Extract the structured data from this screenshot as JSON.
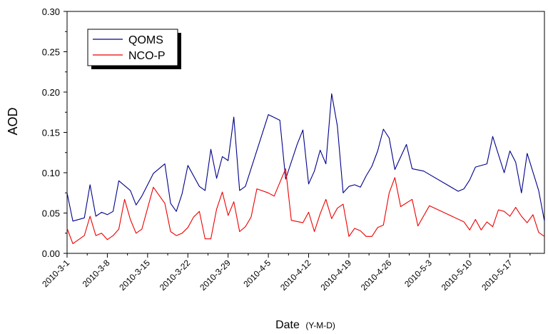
{
  "chart_data": {
    "type": "line",
    "title": "",
    "xlabel": "Date",
    "xlabel_suffix": "(Y-M-D)",
    "ylabel": "AOD",
    "xlim": [
      "2010-03-01",
      "2010-05-23"
    ],
    "ylim": [
      0,
      0.3
    ],
    "grid": false,
    "legend_position": "top-left",
    "x_ticks": [
      "2010-3-1",
      "2010-3-8",
      "2010-3-15",
      "2010-3-22",
      "2010-3-29",
      "2010-4-5",
      "2010-4-12",
      "2010-4-19",
      "2010-4-26",
      "2010-5-3",
      "2010-5-10",
      "2010-5-17"
    ],
    "y_ticks": [
      "0.00",
      "0.05",
      "0.10",
      "0.15",
      "0.20",
      "0.25",
      "0.30"
    ],
    "series": [
      {
        "name": "QOMS",
        "color": "#00008b",
        "points": [
          [
            "2010-03-01",
            0.075
          ],
          [
            "2010-03-02",
            0.04
          ],
          [
            "2010-03-04",
            0.044
          ],
          [
            "2010-03-05",
            0.085
          ],
          [
            "2010-03-06",
            0.046
          ],
          [
            "2010-03-07",
            0.051
          ],
          [
            "2010-03-08",
            0.048
          ],
          [
            "2010-03-09",
            0.052
          ],
          [
            "2010-03-10",
            0.09
          ],
          [
            "2010-03-12",
            0.078
          ],
          [
            "2010-03-13",
            0.06
          ],
          [
            "2010-03-14",
            0.071
          ],
          [
            "2010-03-16",
            0.099
          ],
          [
            "2010-03-18",
            0.111
          ],
          [
            "2010-03-19",
            0.062
          ],
          [
            "2010-03-20",
            0.052
          ],
          [
            "2010-03-21",
            0.074
          ],
          [
            "2010-03-22",
            0.109
          ],
          [
            "2010-03-24",
            0.083
          ],
          [
            "2010-03-25",
            0.078
          ],
          [
            "2010-03-26",
            0.129
          ],
          [
            "2010-03-27",
            0.093
          ],
          [
            "2010-03-28",
            0.12
          ],
          [
            "2010-03-29",
            0.115
          ],
          [
            "2010-03-30",
            0.169
          ],
          [
            "2010-03-31",
            0.078
          ],
          [
            "2010-04-01",
            0.083
          ],
          [
            "2010-04-05",
            0.172
          ],
          [
            "2010-04-07",
            0.165
          ],
          [
            "2010-04-08",
            0.092
          ],
          [
            "2010-04-10",
            0.135
          ],
          [
            "2010-04-11",
            0.153
          ],
          [
            "2010-04-12",
            0.086
          ],
          [
            "2010-04-13",
            0.102
          ],
          [
            "2010-04-14",
            0.128
          ],
          [
            "2010-04-15",
            0.111
          ],
          [
            "2010-04-16",
            0.198
          ],
          [
            "2010-04-17",
            0.158
          ],
          [
            "2010-04-18",
            0.075
          ],
          [
            "2010-04-19",
            0.083
          ],
          [
            "2010-04-20",
            0.085
          ],
          [
            "2010-04-21",
            0.082
          ],
          [
            "2010-04-22",
            0.096
          ],
          [
            "2010-04-23",
            0.108
          ],
          [
            "2010-04-24",
            0.127
          ],
          [
            "2010-04-25",
            0.154
          ],
          [
            "2010-04-26",
            0.143
          ],
          [
            "2010-04-27",
            0.104
          ],
          [
            "2010-04-29",
            0.135
          ],
          [
            "2010-04-30",
            0.105
          ],
          [
            "2010-05-02",
            0.102
          ],
          [
            "2010-05-08",
            0.077
          ],
          [
            "2010-05-09",
            0.08
          ],
          [
            "2010-05-10",
            0.091
          ],
          [
            "2010-05-11",
            0.107
          ],
          [
            "2010-05-13",
            0.111
          ],
          [
            "2010-05-14",
            0.145
          ],
          [
            "2010-05-16",
            0.1
          ],
          [
            "2010-05-17",
            0.127
          ],
          [
            "2010-05-18",
            0.113
          ],
          [
            "2010-05-19",
            0.075
          ],
          [
            "2010-05-20",
            0.124
          ],
          [
            "2010-05-22",
            0.078
          ],
          [
            "2010-05-23",
            0.04
          ]
        ]
      },
      {
        "name": "NCO-P",
        "color": "#ee0000",
        "points": [
          [
            "2010-03-01",
            0.031
          ],
          [
            "2010-03-02",
            0.012
          ],
          [
            "2010-03-04",
            0.022
          ],
          [
            "2010-03-05",
            0.046
          ],
          [
            "2010-03-06",
            0.022
          ],
          [
            "2010-03-07",
            0.025
          ],
          [
            "2010-03-08",
            0.017
          ],
          [
            "2010-03-09",
            0.022
          ],
          [
            "2010-03-10",
            0.03
          ],
          [
            "2010-03-11",
            0.067
          ],
          [
            "2010-03-12",
            0.042
          ],
          [
            "2010-03-13",
            0.025
          ],
          [
            "2010-03-14",
            0.03
          ],
          [
            "2010-03-16",
            0.082
          ],
          [
            "2010-03-18",
            0.062
          ],
          [
            "2010-03-19",
            0.027
          ],
          [
            "2010-03-20",
            0.022
          ],
          [
            "2010-03-21",
            0.025
          ],
          [
            "2010-03-22",
            0.032
          ],
          [
            "2010-03-23",
            0.045
          ],
          [
            "2010-03-24",
            0.052
          ],
          [
            "2010-03-25",
            0.018
          ],
          [
            "2010-03-26",
            0.018
          ],
          [
            "2010-03-27",
            0.055
          ],
          [
            "2010-03-28",
            0.076
          ],
          [
            "2010-03-29",
            0.047
          ],
          [
            "2010-03-30",
            0.064
          ],
          [
            "2010-03-31",
            0.027
          ],
          [
            "2010-04-01",
            0.033
          ],
          [
            "2010-04-02",
            0.045
          ],
          [
            "2010-04-03",
            0.08
          ],
          [
            "2010-04-05",
            0.075
          ],
          [
            "2010-04-06",
            0.071
          ],
          [
            "2010-04-08",
            0.105
          ],
          [
            "2010-04-09",
            0.041
          ],
          [
            "2010-04-11",
            0.038
          ],
          [
            "2010-04-12",
            0.051
          ],
          [
            "2010-04-13",
            0.027
          ],
          [
            "2010-04-14",
            0.049
          ],
          [
            "2010-04-15",
            0.067
          ],
          [
            "2010-04-16",
            0.043
          ],
          [
            "2010-04-17",
            0.056
          ],
          [
            "2010-04-18",
            0.061
          ],
          [
            "2010-04-19",
            0.021
          ],
          [
            "2010-04-20",
            0.031
          ],
          [
            "2010-04-21",
            0.028
          ],
          [
            "2010-04-22",
            0.021
          ],
          [
            "2010-04-23",
            0.021
          ],
          [
            "2010-04-24",
            0.032
          ],
          [
            "2010-04-25",
            0.035
          ],
          [
            "2010-04-26",
            0.075
          ],
          [
            "2010-04-27",
            0.094
          ],
          [
            "2010-04-28",
            0.058
          ],
          [
            "2010-04-30",
            0.067
          ],
          [
            "2010-05-01",
            0.034
          ],
          [
            "2010-05-03",
            0.059
          ],
          [
            "2010-05-09",
            0.039
          ],
          [
            "2010-05-10",
            0.029
          ],
          [
            "2010-05-11",
            0.042
          ],
          [
            "2010-05-12",
            0.029
          ],
          [
            "2010-05-13",
            0.039
          ],
          [
            "2010-05-14",
            0.033
          ],
          [
            "2010-05-15",
            0.054
          ],
          [
            "2010-05-16",
            0.052
          ],
          [
            "2010-05-17",
            0.046
          ],
          [
            "2010-05-18",
            0.057
          ],
          [
            "2010-05-19",
            0.046
          ],
          [
            "2010-05-20",
            0.038
          ],
          [
            "2010-05-21",
            0.048
          ],
          [
            "2010-05-22",
            0.026
          ],
          [
            "2010-05-23",
            0.021
          ]
        ]
      }
    ]
  }
}
